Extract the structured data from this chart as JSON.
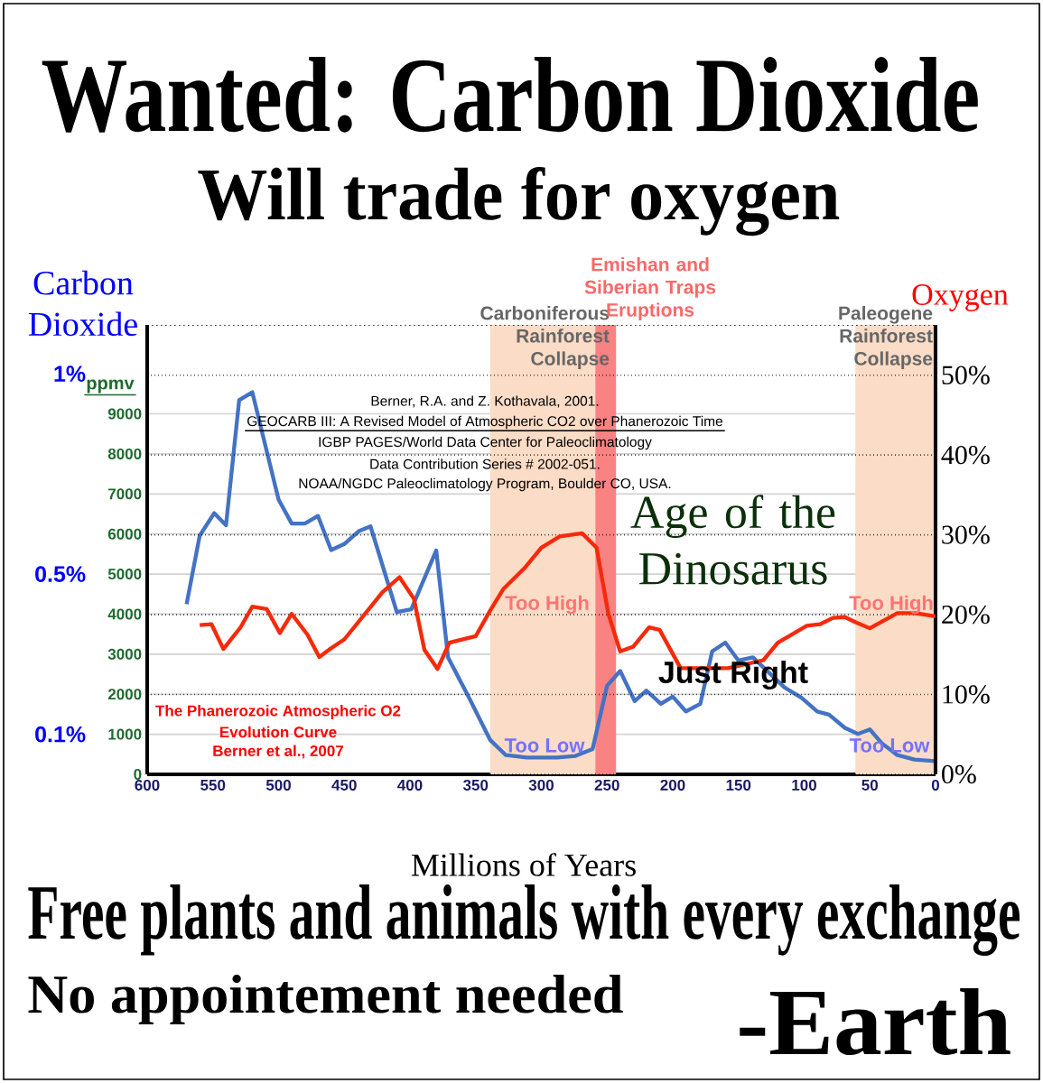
{
  "chart_data": {
    "type": "line",
    "title": "Wanted: Carbon Dioxide",
    "subtitle": "Will trade for oxygen",
    "xlabel": "Millions of Years",
    "ylabel": "ppmv",
    "y2label": "Oxygen",
    "y3label": "Carbon Dioxide",
    "xlim": [
      600,
      0
    ],
    "xticks": [
      600,
      550,
      500,
      450,
      400,
      350,
      300,
      250,
      200,
      150,
      100,
      50,
      0
    ],
    "ylim": [
      0,
      11220
    ],
    "yticks": [
      0,
      1000,
      2000,
      3000,
      4000,
      5000,
      6000,
      7000,
      8000,
      9000
    ],
    "y2lim": [
      0,
      56.3
    ],
    "y2ticks": [
      {
        "value": 0,
        "label": "0%"
      },
      {
        "value": 10,
        "label": "10%"
      },
      {
        "value": 20,
        "label": "20%"
      },
      {
        "value": 30,
        "label": "30%"
      },
      {
        "value": 40,
        "label": "40%"
      },
      {
        "value": 50,
        "label": "50%"
      }
    ],
    "y3lim": [
      0,
      1.122
    ],
    "y3ticks": [
      {
        "value": 0.1,
        "label": "0.1%"
      },
      {
        "value": 0.5,
        "label": "0.5%"
      },
      {
        "value": 1,
        "label": "1%"
      }
    ],
    "grid": "y",
    "series": [
      {
        "color": "#4472c4",
        "axis": "y",
        "x": [
          570,
          560,
          549,
          540,
          530,
          520,
          500,
          490,
          480,
          470,
          460,
          450,
          439,
          430,
          410,
          399,
          380,
          371,
          355,
          339,
          327,
          311,
          288,
          274,
          261,
          250,
          240,
          229,
          220,
          209,
          200,
          190,
          179,
          170,
          160,
          150,
          139,
          115,
          102,
          90,
          81,
          69,
          59,
          50,
          41,
          29,
          16,
          0
        ],
        "values": [
          4250,
          5960,
          6520,
          6220,
          9340,
          9540,
          6860,
          6260,
          6260,
          6450,
          5600,
          5750,
          6070,
          6190,
          4050,
          4120,
          5590,
          2920,
          1910,
          860,
          480,
          420,
          420,
          460,
          630,
          2210,
          2580,
          1830,
          2090,
          1760,
          1940,
          1570,
          1760,
          3070,
          3290,
          2840,
          2920,
          2170,
          1910,
          1570,
          1490,
          1160,
          1010,
          1120,
          780,
          480,
          370,
          330
        ]
      },
      {
        "color": "#f52a0a",
        "axis": "y2",
        "x": [
          560,
          551,
          542,
          529,
          520,
          509,
          499,
          490,
          478,
          469,
          460,
          450,
          421,
          408,
          397,
          389,
          379,
          370,
          350,
          339,
          329,
          313,
          300,
          286,
          269,
          258,
          249,
          240,
          230,
          218,
          210,
          194,
          158,
          131,
          120,
          98,
          88,
          78,
          69,
          60,
          50,
          29,
          16,
          0
        ],
        "values": [
          18.7,
          18.8,
          15.7,
          18.4,
          21.0,
          20.7,
          17.7,
          20.1,
          17.5,
          14.7,
          15.8,
          16.9,
          22.8,
          24.7,
          22.0,
          15.6,
          13.2,
          16.5,
          17.3,
          20.5,
          23.2,
          25.8,
          28.4,
          29.8,
          30.2,
          28.4,
          20.1,
          15.4,
          16.0,
          18.4,
          18.1,
          13.3,
          13.3,
          14.3,
          16.5,
          18.6,
          18.8,
          19.6,
          19.7,
          19.0,
          18.3,
          20.2,
          20.2,
          19.8
        ]
      }
    ],
    "bands": [
      {
        "axis": "x",
        "from": 339,
        "to": 259,
        "label": "Carboniferous Rainforest Collapse",
        "color": "#fbdcc6"
      },
      {
        "axis": "x",
        "from": 259,
        "to": 243,
        "label": "Emishan and Siberian Traps Eruptions",
        "color": "#f98282"
      },
      {
        "axis": "x",
        "from": 61,
        "to": 0,
        "label": "Paleogene Rainforest Collapse",
        "color": "#fbdcc6"
      }
    ],
    "annotations": [
      "Berner, R.A. and Z. Kothavala, 2001.",
      "GEOCARB III: A Revised Model of Atmospheric CO2 over Phanerozoic Time",
      "IGBP PAGES/World Data Center for Paleoclimatology",
      "Data Contribution Series # 2002-051.",
      "NOAA/NGDC Paleoclimatology Program, Boulder CO, USA.",
      "The Phanerozoic Atmospheric O2",
      "Evolution Curve",
      "Berner et al., 2007",
      "Age of the Dinosarus",
      "Too High",
      "Too High",
      "Too Low",
      "Too Low",
      "Just Right",
      "Free plants and animals with every exchange",
      "No appointement needed",
      "-Earth"
    ]
  }
}
